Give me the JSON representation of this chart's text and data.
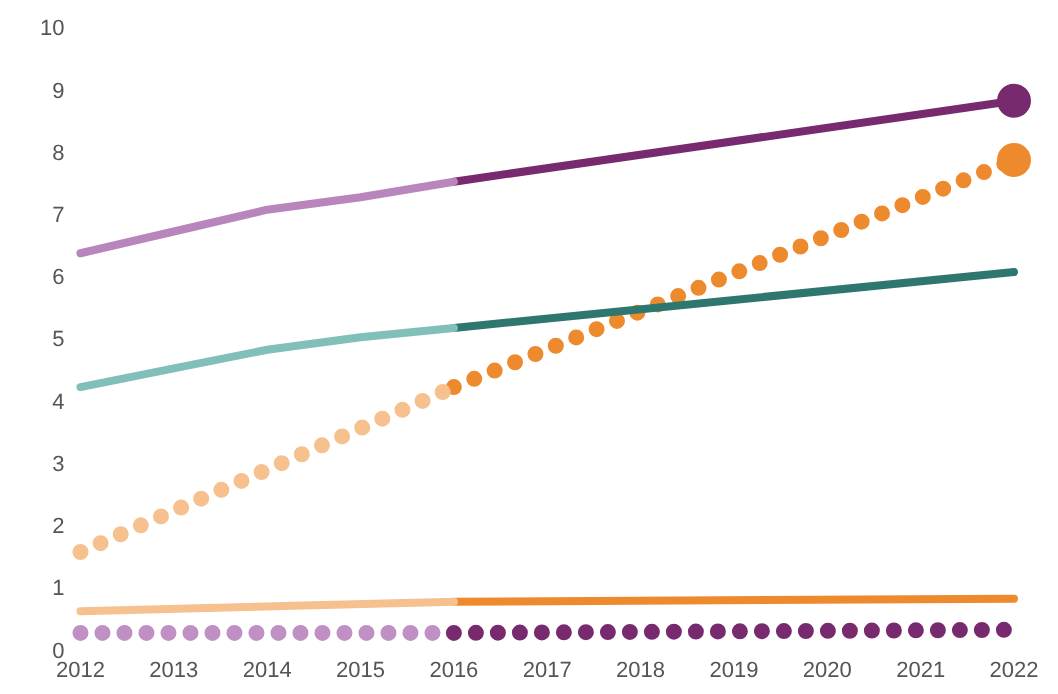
{
  "chart_data": {
    "type": "line",
    "xlim": [
      2012,
      2022
    ],
    "xticks": [
      2012,
      2013,
      2014,
      2015,
      2016,
      2017,
      2018,
      2019,
      2020,
      2021,
      2022
    ],
    "ylim": [
      0,
      10
    ],
    "yticks": [
      0,
      1,
      2,
      3,
      4,
      5,
      6,
      7,
      8,
      9,
      10
    ],
    "grid": false,
    "legend": false,
    "marker": "none",
    "line_style": "solid",
    "series": [
      {
        "color": "#b886bc",
        "x": [
          2012,
          2013,
          2014,
          2015,
          2016
        ],
        "values": [
          6.4,
          6.75,
          7.1,
          7.3,
          7.55
        ]
      },
      {
        "color": "#772a6e",
        "x": [
          2016,
          2022
        ],
        "values": [
          7.55,
          8.85
        ]
      },
      {
        "color": "#80c0b9",
        "x": [
          2012,
          2013,
          2014,
          2015,
          2016
        ],
        "values": [
          4.25,
          4.55,
          4.85,
          5.05,
          5.2
        ]
      },
      {
        "color": "#2e7670",
        "x": [
          2016,
          2022
        ],
        "values": [
          5.2,
          6.1
        ]
      },
      {
        "color": "#f6c18e",
        "line_style": "dotted",
        "x": [
          2012,
          2016
        ],
        "values": [
          1.6,
          4.25
        ]
      },
      {
        "color": "#ec8a2d",
        "line_style": "dotted",
        "x": [
          2016,
          2022
        ],
        "values": [
          4.25,
          7.9
        ]
      },
      {
        "color": "#f6c18e",
        "x": [
          2012,
          2016
        ],
        "values": [
          0.65,
          0.8
        ]
      },
      {
        "color": "#ec8a2d",
        "x": [
          2016,
          2022
        ],
        "values": [
          0.8,
          0.85
        ]
      },
      {
        "color": "#c08fc4",
        "line_style": "dotted",
        "x": [
          2012,
          2016
        ],
        "values": [
          0.3,
          0.3
        ]
      },
      {
        "color": "#772a6e",
        "line_style": "dotted",
        "x": [
          2016,
          2022
        ],
        "values": [
          0.3,
          0.35
        ]
      },
      {
        "type": "scatter",
        "marker": "circle",
        "color": "#772a6e",
        "x": [
          2022
        ],
        "values": [
          8.85
        ]
      },
      {
        "type": "scatter",
        "marker": "circle",
        "color": "#ec8a2d",
        "x": [
          2022
        ],
        "values": [
          7.9
        ]
      }
    ]
  }
}
